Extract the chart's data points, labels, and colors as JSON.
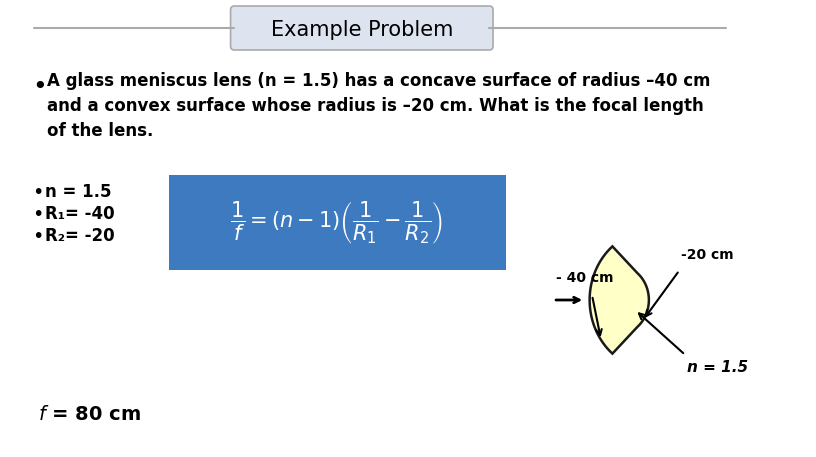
{
  "title": "Example Problem",
  "title_box_color": "#dde3ef",
  "title_line_color": "#aaaaaa",
  "background_color": "#ffffff",
  "bullet1": "A glass meniscus lens (n = 1.5) has a concave surface of radius –40 cm\nand a convex surface whose radius is –20 cm. What is the focal length\nof the lens.",
  "bullet2": "n = 1.5",
  "bullet3": "R₁= -40",
  "bullet4": "R₂= -20",
  "formula_box_color": "#3d7abf",
  "formula_text_color": "#ffffff",
  "answer_text": "f = 80 cm",
  "lens_fill_color": "#ffffc8",
  "lens_edge_color": "#1a1a1a",
  "arrow_label_neg20": "-20 cm",
  "arrow_label_neg40": "- 40 cm",
  "arrow_label_n": "n = 1.5"
}
